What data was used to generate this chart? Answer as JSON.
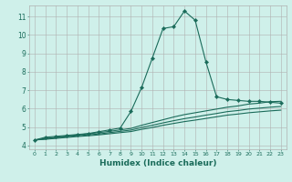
{
  "xlabel": "Humidex (Indice chaleur)",
  "ylabel": "",
  "bg_color": "#cff0ea",
  "grid_color": "#b0b0b0",
  "line_color": "#1a6b5a",
  "xmin": -0.5,
  "xmax": 23.5,
  "ymin": 3.8,
  "ymax": 11.6,
  "yticks": [
    4,
    5,
    6,
    7,
    8,
    9,
    10,
    11
  ],
  "xticks": [
    0,
    1,
    2,
    3,
    4,
    5,
    6,
    7,
    8,
    9,
    10,
    11,
    12,
    13,
    14,
    15,
    16,
    17,
    18,
    19,
    20,
    21,
    22,
    23
  ],
  "series": [
    {
      "x": [
        0,
        1,
        2,
        3,
        4,
        5,
        6,
        7,
        8,
        9,
        10,
        11,
        12,
        13,
        14,
        15,
        16,
        17,
        18,
        19,
        20,
        21,
        22,
        23
      ],
      "y": [
        4.3,
        4.45,
        4.5,
        4.55,
        4.6,
        4.65,
        4.75,
        4.85,
        4.95,
        5.85,
        7.15,
        8.75,
        10.35,
        10.45,
        11.3,
        10.8,
        8.55,
        6.65,
        6.5,
        6.45,
        6.4,
        6.4,
        6.35,
        6.3
      ],
      "marker": true
    },
    {
      "x": [
        0,
        1,
        2,
        3,
        4,
        5,
        6,
        7,
        8,
        9,
        10,
        11,
        12,
        13,
        14,
        15,
        16,
        17,
        18,
        19,
        20,
        21,
        22,
        23
      ],
      "y": [
        4.3,
        4.38,
        4.45,
        4.52,
        4.58,
        4.64,
        4.7,
        4.77,
        4.85,
        4.93,
        5.1,
        5.25,
        5.4,
        5.55,
        5.68,
        5.78,
        5.88,
        5.98,
        6.08,
        6.15,
        6.25,
        6.3,
        6.38,
        6.4
      ],
      "marker": false
    },
    {
      "x": [
        0,
        1,
        2,
        3,
        4,
        5,
        6,
        7,
        8,
        9,
        10,
        11,
        12,
        13,
        14,
        15,
        16,
        17,
        18,
        19,
        20,
        21,
        22,
        23
      ],
      "y": [
        4.3,
        4.36,
        4.42,
        4.48,
        4.53,
        4.58,
        4.63,
        4.7,
        4.77,
        4.84,
        4.98,
        5.1,
        5.23,
        5.35,
        5.46,
        5.55,
        5.65,
        5.74,
        5.84,
        5.9,
        5.98,
        6.03,
        6.08,
        6.12
      ],
      "marker": false
    },
    {
      "x": [
        0,
        1,
        2,
        3,
        4,
        5,
        6,
        7,
        8,
        9,
        10,
        11,
        12,
        13,
        14,
        15,
        16,
        17,
        18,
        19,
        20,
        21,
        22,
        23
      ],
      "y": [
        4.3,
        4.34,
        4.39,
        4.44,
        4.49,
        4.53,
        4.58,
        4.64,
        4.7,
        4.76,
        4.88,
        4.98,
        5.1,
        5.2,
        5.3,
        5.38,
        5.47,
        5.56,
        5.65,
        5.71,
        5.78,
        5.83,
        5.88,
        5.92
      ],
      "marker": false
    }
  ]
}
